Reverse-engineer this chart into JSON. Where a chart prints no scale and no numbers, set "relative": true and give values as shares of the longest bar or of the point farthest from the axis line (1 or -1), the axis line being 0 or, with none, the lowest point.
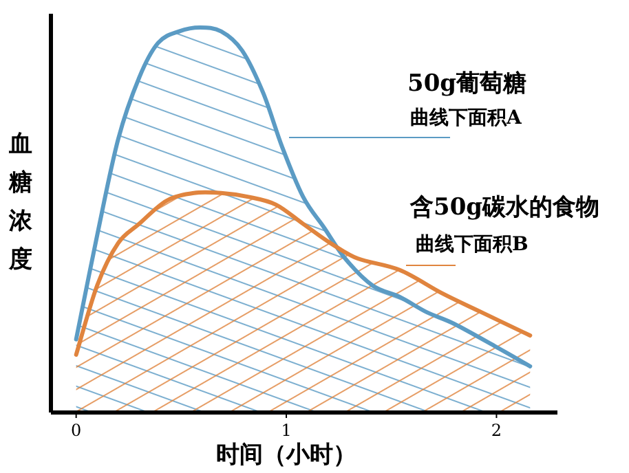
{
  "chart_data": {
    "type": "area",
    "relative": true,
    "xlabel": "时间（小时）",
    "ylabel": "血糖浓度",
    "xlim": [
      -0.12,
      2.29
    ],
    "xticks": [
      0,
      1,
      2
    ],
    "series": [
      {
        "color": "#5b9bc4",
        "x": [
          0,
          0.1,
          0.2,
          0.3,
          0.39,
          0.49,
          0.59,
          0.69,
          0.79,
          0.89,
          0.98,
          1.08,
          1.18,
          1.28,
          1.41,
          1.54,
          1.67,
          1.8,
          2.0,
          2.16
        ],
        "values": [
          0.19,
          0.46,
          0.71,
          0.87,
          0.96,
          0.99,
          1,
          0.99,
          0.94,
          0.83,
          0.69,
          0.56,
          0.48,
          0.4,
          0.33,
          0.3,
          0.26,
          0.23,
          0.17,
          0.12
        ]
      },
      {
        "color": "#e0843e",
        "x": [
          0,
          0.1,
          0.2,
          0.3,
          0.43,
          0.56,
          0.69,
          0.82,
          0.95,
          1.08,
          1.21,
          1.34,
          1.54,
          1.74,
          1.93,
          2.16
        ],
        "values": [
          0.15,
          0.33,
          0.44,
          0.49,
          0.55,
          0.57,
          0.57,
          0.56,
          0.54,
          0.49,
          0.44,
          0.4,
          0.37,
          0.31,
          0.26,
          0.2
        ]
      }
    ],
    "annotations": [
      "50g葡萄糖",
      "曲线下面积A",
      "含50g碳水的食物",
      "曲线下面积B"
    ]
  }
}
